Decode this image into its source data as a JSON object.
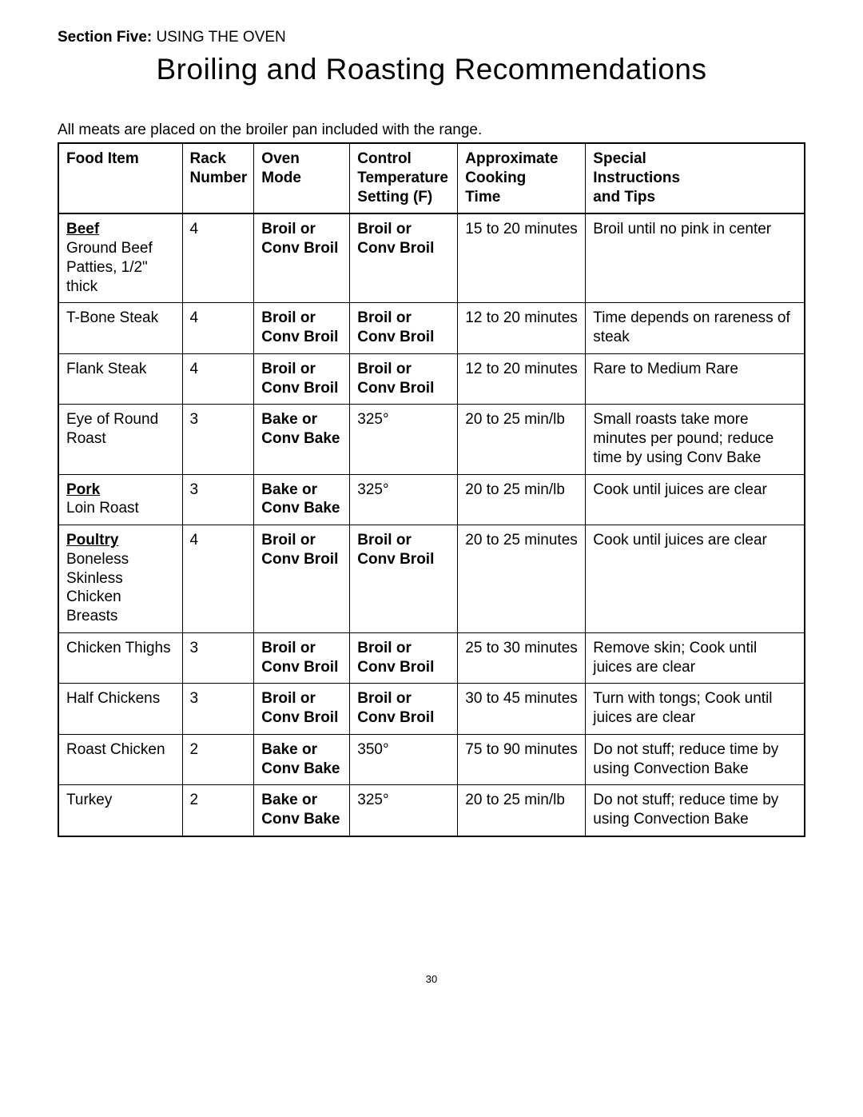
{
  "header": {
    "section_bold": "Section Five:",
    "section_rest": " USING THE OVEN",
    "title": "Broiling and Roasting Recommendations",
    "intro": "All meats are placed on the broiler pan included with the range."
  },
  "columns": {
    "food": "Food Item",
    "rack_l1": "Rack",
    "rack_l2": "Number",
    "mode_l1": "Oven",
    "mode_l2": "Mode",
    "temp_l1": "Control",
    "temp_l2": "Temperature",
    "temp_l3": "Setting (F)",
    "time_l1": "Approximate",
    "time_l2": "Cooking",
    "time_l3": "Time",
    "tips_l1": "Special",
    "tips_l2": "Instructions",
    "tips_l3": "and Tips"
  },
  "rows": [
    {
      "category": "Beef",
      "food": "Ground Beef Patties, 1/2\" thick",
      "rack": "4",
      "mode": "Broil or Conv Broil",
      "temp": "Broil or Conv Broil",
      "temp_bold": true,
      "time": "15 to 20 minutes",
      "tips": "Broil until no pink in center"
    },
    {
      "food": "T-Bone Steak",
      "rack": "4",
      "mode": "Broil or Conv Broil",
      "temp": "Broil or Conv Broil",
      "temp_bold": true,
      "time": "12 to 20 minutes",
      "tips": "Time depends on rareness of steak"
    },
    {
      "food": "Flank Steak",
      "rack": "4",
      "mode": "Broil or Conv Broil",
      "temp": "Broil or Conv Broil",
      "temp_bold": true,
      "time": "12 to 20 minutes",
      "tips": "Rare to Medium Rare"
    },
    {
      "food": "Eye of Round Roast",
      "rack": "3",
      "mode": "Bake or Conv Bake",
      "temp": "325°",
      "temp_bold": false,
      "time": "20 to 25 min/lb",
      "tips": "Small roasts take more minutes per pound; reduce time by using Conv Bake"
    },
    {
      "category": "Pork",
      "food": "Loin Roast",
      "rack": "3",
      "mode": "Bake or Conv Bake",
      "temp": "325°",
      "temp_bold": false,
      "time": "20 to 25 min/lb",
      "tips": "Cook until juices are clear"
    },
    {
      "category": "Poultry",
      "food": "Boneless Skinless Chicken Breasts",
      "rack": "4",
      "mode": "Broil or Conv Broil",
      "temp": "Broil or Conv Broil",
      "temp_bold": true,
      "time": "20 to 25 minutes",
      "tips": "Cook until juices are clear"
    },
    {
      "food": "Chicken Thighs",
      "rack": "3",
      "mode": "Broil or Conv Broil",
      "temp": "Broil or Conv Broil",
      "temp_bold": true,
      "time": "25 to 30 minutes",
      "tips": "Remove skin; Cook until juices are clear"
    },
    {
      "food": "Half Chickens",
      "rack": "3",
      "mode": "Broil or Conv Broil",
      "temp": "Broil or Conv Broil",
      "temp_bold": true,
      "time": "30 to 45 minutes",
      "tips": "Turn with tongs; Cook until juices are clear"
    },
    {
      "food": "Roast Chicken",
      "rack": "2",
      "mode": "Bake or Conv Bake",
      "temp": "350°",
      "temp_bold": false,
      "time": "75 to 90 minutes",
      "tips": "Do not stuff; reduce time by using Convection Bake"
    },
    {
      "food": "Turkey",
      "rack": "2",
      "mode": "Bake or Conv Bake",
      "temp": "325°",
      "temp_bold": false,
      "time": "20 to 25 min/lb",
      "tips": "Do not stuff; reduce time by using Convection Bake"
    }
  ],
  "page_number": "30"
}
